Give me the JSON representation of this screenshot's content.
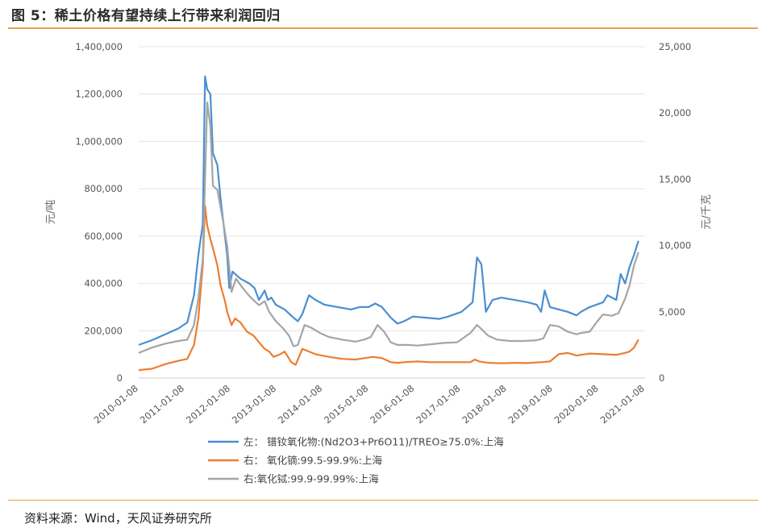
{
  "page": {
    "title": "图 5：稀土价格有望持续上行带来利润回归",
    "source": "资料来源：Wind，天风证券研究所"
  },
  "chart_data": {
    "type": "line",
    "ylabel_left": "元/吨",
    "ylabel_right": "元/千克",
    "ylim_left": [
      0,
      1400000
    ],
    "ylim_right": [
      0,
      25000
    ],
    "yticks_left": [
      "1,400,000",
      "1,200,000",
      "1,000,000",
      "800,000",
      "600,000",
      "400,000",
      "200,000",
      "0"
    ],
    "yticks_right": [
      "25,000",
      "20,000",
      "15,000",
      "10,000",
      "5,000",
      "0"
    ],
    "x_ticks": [
      "2010-01-08",
      "2011-01-08",
      "2012-01-08",
      "2013-01-08",
      "2014-01-08",
      "2015-01-08",
      "2016-01-08",
      "2017-01-08",
      "2018-01-08",
      "2019-01-08",
      "2020-01-08",
      "2021-01-08"
    ],
    "x_range": [
      2010.0,
      2021.45
    ],
    "legend_position": "bottom",
    "series": [
      {
        "name": "左： 镨钕氧化物:(Nd2O3+Pr6O11)/TREO≥75.0%:上海",
        "axis": "left",
        "color": "#4a8fd1",
        "points": [
          [
            2010.0,
            140000
          ],
          [
            2010.3,
            160000
          ],
          [
            2010.6,
            185000
          ],
          [
            2010.9,
            210000
          ],
          [
            2011.1,
            235000
          ],
          [
            2011.25,
            350000
          ],
          [
            2011.35,
            520000
          ],
          [
            2011.45,
            650000
          ],
          [
            2011.5,
            1275000
          ],
          [
            2011.55,
            1220000
          ],
          [
            2011.62,
            1200000
          ],
          [
            2011.68,
            950000
          ],
          [
            2011.78,
            900000
          ],
          [
            2011.85,
            760000
          ],
          [
            2011.95,
            600000
          ],
          [
            2012.0,
            520000
          ],
          [
            2012.05,
            380000
          ],
          [
            2012.12,
            450000
          ],
          [
            2012.3,
            420000
          ],
          [
            2012.5,
            400000
          ],
          [
            2012.62,
            380000
          ],
          [
            2012.72,
            330000
          ],
          [
            2012.85,
            370000
          ],
          [
            2012.92,
            330000
          ],
          [
            2013.0,
            340000
          ],
          [
            2013.1,
            310000
          ],
          [
            2013.3,
            290000
          ],
          [
            2013.5,
            255000
          ],
          [
            2013.6,
            240000
          ],
          [
            2013.7,
            270000
          ],
          [
            2013.85,
            350000
          ],
          [
            2014.0,
            330000
          ],
          [
            2014.2,
            310000
          ],
          [
            2014.5,
            300000
          ],
          [
            2014.8,
            290000
          ],
          [
            2015.0,
            300000
          ],
          [
            2015.2,
            300000
          ],
          [
            2015.35,
            315000
          ],
          [
            2015.5,
            300000
          ],
          [
            2015.7,
            255000
          ],
          [
            2015.85,
            230000
          ],
          [
            2016.0,
            240000
          ],
          [
            2016.2,
            260000
          ],
          [
            2016.5,
            255000
          ],
          [
            2016.8,
            250000
          ],
          [
            2017.0,
            260000
          ],
          [
            2017.3,
            280000
          ],
          [
            2017.55,
            320000
          ],
          [
            2017.65,
            510000
          ],
          [
            2017.75,
            480000
          ],
          [
            2017.85,
            280000
          ],
          [
            2018.0,
            330000
          ],
          [
            2018.2,
            340000
          ],
          [
            2018.5,
            330000
          ],
          [
            2018.8,
            320000
          ],
          [
            2019.0,
            310000
          ],
          [
            2019.1,
            280000
          ],
          [
            2019.18,
            370000
          ],
          [
            2019.3,
            300000
          ],
          [
            2019.5,
            290000
          ],
          [
            2019.7,
            280000
          ],
          [
            2019.9,
            265000
          ],
          [
            2020.0,
            280000
          ],
          [
            2020.2,
            300000
          ],
          [
            2020.5,
            320000
          ],
          [
            2020.6,
            350000
          ],
          [
            2020.8,
            330000
          ],
          [
            2020.9,
            440000
          ],
          [
            2021.0,
            400000
          ],
          [
            2021.1,
            470000
          ],
          [
            2021.2,
            520000
          ],
          [
            2021.3,
            580000
          ]
        ]
      },
      {
        "name": "右： 氧化镝:99.5-99.9%:上海",
        "axis": "right",
        "color": "#ed7d31",
        "points": [
          [
            2010.0,
            600
          ],
          [
            2010.3,
            700
          ],
          [
            2010.6,
            1050
          ],
          [
            2010.9,
            1300
          ],
          [
            2011.1,
            1450
          ],
          [
            2011.25,
            2500
          ],
          [
            2011.35,
            4500
          ],
          [
            2011.45,
            8500
          ],
          [
            2011.5,
            13000
          ],
          [
            2011.55,
            11500
          ],
          [
            2011.62,
            10500
          ],
          [
            2011.68,
            9800
          ],
          [
            2011.78,
            8500
          ],
          [
            2011.85,
            7000
          ],
          [
            2011.95,
            5800
          ],
          [
            2012.0,
            5000
          ],
          [
            2012.1,
            4000
          ],
          [
            2012.18,
            4500
          ],
          [
            2012.3,
            4200
          ],
          [
            2012.45,
            3500
          ],
          [
            2012.6,
            3200
          ],
          [
            2012.72,
            2700
          ],
          [
            2012.85,
            2200
          ],
          [
            2012.95,
            2000
          ],
          [
            2013.05,
            1600
          ],
          [
            2013.2,
            1800
          ],
          [
            2013.3,
            2000
          ],
          [
            2013.45,
            1200
          ],
          [
            2013.55,
            1000
          ],
          [
            2013.7,
            2200
          ],
          [
            2013.85,
            2000
          ],
          [
            2014.0,
            1800
          ],
          [
            2014.3,
            1600
          ],
          [
            2014.6,
            1450
          ],
          [
            2014.9,
            1400
          ],
          [
            2015.1,
            1500
          ],
          [
            2015.3,
            1600
          ],
          [
            2015.5,
            1500
          ],
          [
            2015.7,
            1200
          ],
          [
            2015.85,
            1150
          ],
          [
            2016.0,
            1200
          ],
          [
            2016.3,
            1250
          ],
          [
            2016.6,
            1200
          ],
          [
            2016.9,
            1200
          ],
          [
            2017.2,
            1200
          ],
          [
            2017.5,
            1200
          ],
          [
            2017.6,
            1400
          ],
          [
            2017.7,
            1250
          ],
          [
            2017.9,
            1150
          ],
          [
            2018.2,
            1120
          ],
          [
            2018.5,
            1150
          ],
          [
            2018.8,
            1130
          ],
          [
            2019.1,
            1200
          ],
          [
            2019.3,
            1250
          ],
          [
            2019.5,
            1800
          ],
          [
            2019.7,
            1900
          ],
          [
            2019.9,
            1700
          ],
          [
            2020.0,
            1750
          ],
          [
            2020.2,
            1850
          ],
          [
            2020.5,
            1800
          ],
          [
            2020.8,
            1750
          ],
          [
            2021.0,
            1900
          ],
          [
            2021.1,
            2000
          ],
          [
            2021.2,
            2300
          ],
          [
            2021.3,
            2900
          ]
        ]
      },
      {
        "name": "右:氧化铽:99.9-99.99%:上海",
        "axis": "right",
        "color": "#a5a5a5",
        "points": [
          [
            2010.0,
            1900
          ],
          [
            2010.3,
            2300
          ],
          [
            2010.6,
            2600
          ],
          [
            2010.9,
            2800
          ],
          [
            2011.1,
            2900
          ],
          [
            2011.25,
            4000
          ],
          [
            2011.35,
            6000
          ],
          [
            2011.45,
            9000
          ],
          [
            2011.55,
            20800
          ],
          [
            2011.62,
            19000
          ],
          [
            2011.68,
            14500
          ],
          [
            2011.78,
            14200
          ],
          [
            2011.9,
            12000
          ],
          [
            2012.0,
            10000
          ],
          [
            2012.1,
            6500
          ],
          [
            2012.2,
            7500
          ],
          [
            2012.35,
            6800
          ],
          [
            2012.5,
            6200
          ],
          [
            2012.62,
            5800
          ],
          [
            2012.72,
            5500
          ],
          [
            2012.85,
            5800
          ],
          [
            2012.95,
            5000
          ],
          [
            2013.1,
            4300
          ],
          [
            2013.25,
            3800
          ],
          [
            2013.4,
            3200
          ],
          [
            2013.5,
            2400
          ],
          [
            2013.6,
            2500
          ],
          [
            2013.75,
            4000
          ],
          [
            2013.9,
            3800
          ],
          [
            2014.1,
            3400
          ],
          [
            2014.3,
            3100
          ],
          [
            2014.6,
            2900
          ],
          [
            2014.9,
            2750
          ],
          [
            2015.1,
            2900
          ],
          [
            2015.25,
            3100
          ],
          [
            2015.4,
            4000
          ],
          [
            2015.55,
            3500
          ],
          [
            2015.7,
            2700
          ],
          [
            2015.85,
            2500
          ],
          [
            2016.1,
            2500
          ],
          [
            2016.3,
            2450
          ],
          [
            2016.6,
            2550
          ],
          [
            2016.9,
            2650
          ],
          [
            2017.2,
            2700
          ],
          [
            2017.5,
            3400
          ],
          [
            2017.65,
            4000
          ],
          [
            2017.75,
            3700
          ],
          [
            2017.9,
            3200
          ],
          [
            2018.1,
            2900
          ],
          [
            2018.4,
            2800
          ],
          [
            2018.7,
            2800
          ],
          [
            2019.0,
            2850
          ],
          [
            2019.15,
            3000
          ],
          [
            2019.3,
            4000
          ],
          [
            2019.5,
            3900
          ],
          [
            2019.7,
            3500
          ],
          [
            2019.9,
            3300
          ],
          [
            2020.0,
            3400
          ],
          [
            2020.2,
            3500
          ],
          [
            2020.35,
            4200
          ],
          [
            2020.5,
            4800
          ],
          [
            2020.7,
            4700
          ],
          [
            2020.85,
            4900
          ],
          [
            2021.0,
            6000
          ],
          [
            2021.1,
            7000
          ],
          [
            2021.2,
            8500
          ],
          [
            2021.3,
            9500
          ]
        ]
      }
    ]
  }
}
